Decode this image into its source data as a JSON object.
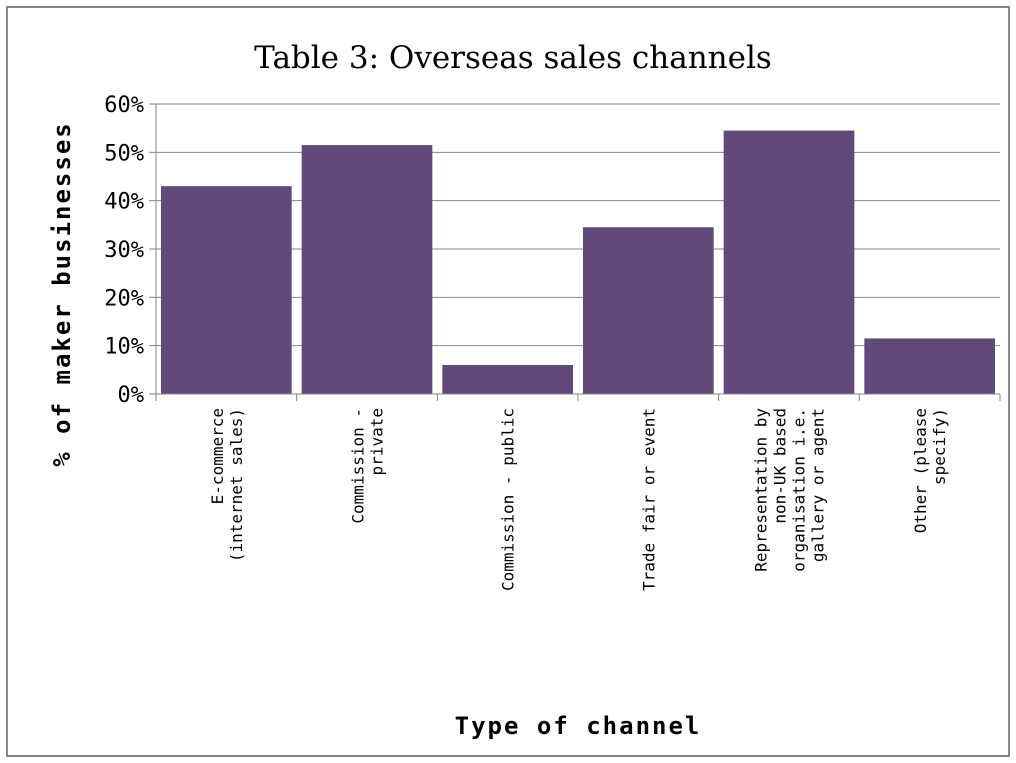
{
  "chart_data": {
    "type": "bar",
    "title": "Table 3: Overseas sales channels",
    "xlabel": "Type of channel",
    "ylabel": "% of maker businesses",
    "categories": [
      [
        "E-commerce",
        "(internet sales)"
      ],
      [
        "Commission -",
        "private"
      ],
      [
        "Commission - public"
      ],
      [
        "Trade fair or event"
      ],
      [
        "Representation by",
        "non-UK based",
        "organisation i.e.",
        "gallery or agent"
      ],
      [
        "Other (please",
        "specify)"
      ]
    ],
    "values": [
      43,
      51.5,
      6,
      34.5,
      54.5,
      11.5
    ],
    "ylim": [
      0,
      60
    ],
    "yticks": [
      0,
      10,
      20,
      30,
      40,
      50,
      60
    ],
    "ytick_labels": [
      "0%",
      "10%",
      "20%",
      "30%",
      "40%",
      "50%",
      "60%"
    ],
    "bar_color": "#614a7a",
    "gridlines": true,
    "legend": "none"
  }
}
